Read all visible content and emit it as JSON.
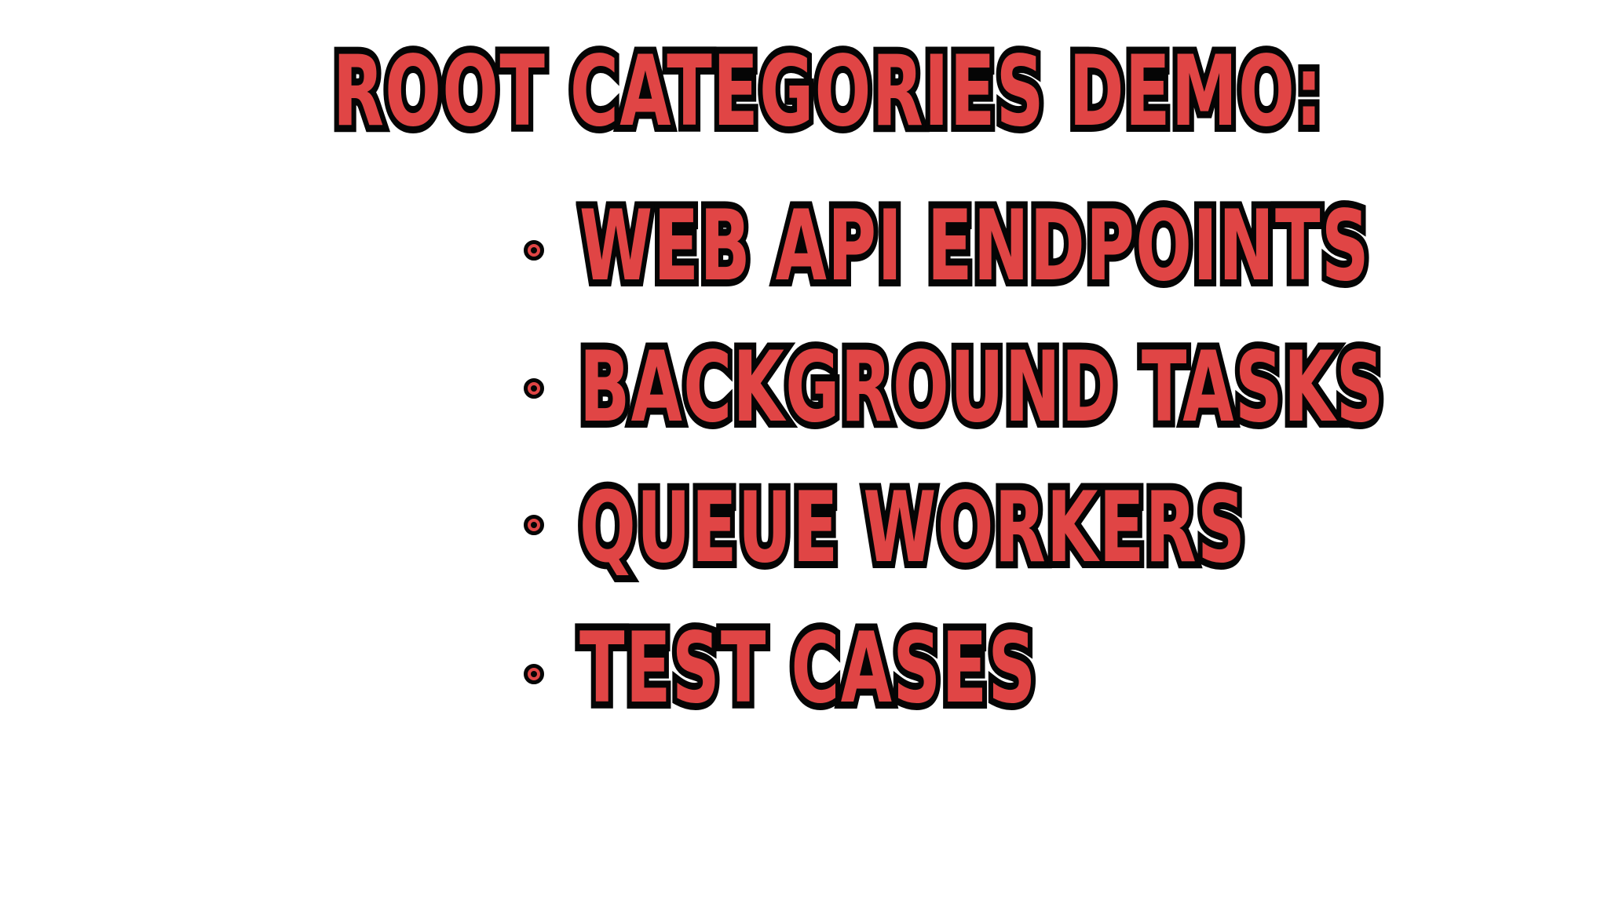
{
  "slide": {
    "title": "Root Categories Demo:",
    "items": [
      {
        "label": "Web API Endpoints"
      },
      {
        "label": "Background Tasks"
      },
      {
        "label": "Queue Workers"
      },
      {
        "label": "Test Cases"
      }
    ]
  },
  "colors": {
    "text_fill": "#e04545",
    "text_outline": "#050505",
    "background": "#ffffff"
  },
  "icons": {
    "bullet": "circle-bullet-icon"
  }
}
